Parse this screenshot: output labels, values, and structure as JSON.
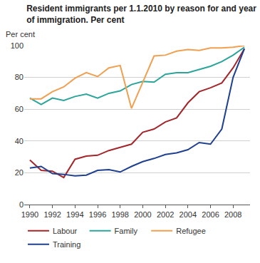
{
  "chart_data": {
    "type": "line",
    "title": "Resident immigrants per 1.1.2010 by reason for and year of immigration. Per cent",
    "ylabel": "Per cent",
    "x": [
      1990,
      1991,
      1992,
      1993,
      1994,
      1995,
      1996,
      1997,
      1998,
      1999,
      2000,
      2001,
      2002,
      2003,
      2004,
      2005,
      2006,
      2007,
      2008,
      2009
    ],
    "series": [
      {
        "name": "Labour",
        "color": "#a3262a",
        "values": [
          28,
          21.5,
          21,
          17,
          28.5,
          30.5,
          31,
          34,
          36,
          38,
          45.5,
          47.5,
          52,
          54.5,
          64,
          71,
          73.5,
          76.5,
          86,
          98
        ]
      },
      {
        "name": "Family",
        "color": "#2ba59a",
        "values": [
          67,
          63,
          67,
          65.5,
          68,
          69.5,
          67,
          70,
          71.5,
          75.5,
          77.5,
          77,
          82,
          83,
          83,
          85,
          87,
          90,
          94,
          99
        ]
      },
      {
        "name": "Refugee",
        "color": "#f0a050",
        "values": [
          66.5,
          66.5,
          71,
          74,
          79.5,
          83,
          80.5,
          86,
          87.5,
          60.5,
          77,
          93.5,
          94,
          96.5,
          97.5,
          97,
          98.5,
          98.5,
          99,
          100
        ]
      },
      {
        "name": "Training",
        "color": "#1f3f8f",
        "values": [
          23,
          24,
          19.5,
          19,
          18,
          18.5,
          21.5,
          22,
          20.5,
          24,
          27,
          29,
          31.5,
          32.5,
          34.5,
          39,
          38,
          47.5,
          80,
          98
        ]
      }
    ],
    "xlim": [
      1989.5,
      2009.5
    ],
    "xticks": [
      1990,
      1992,
      1994,
      1996,
      1998,
      2000,
      2002,
      2004,
      2006,
      2008
    ],
    "ylim": [
      0,
      100
    ],
    "yticks": [
      0,
      20,
      40,
      60,
      80,
      100
    ],
    "grid": true,
    "legend": "bottom"
  }
}
